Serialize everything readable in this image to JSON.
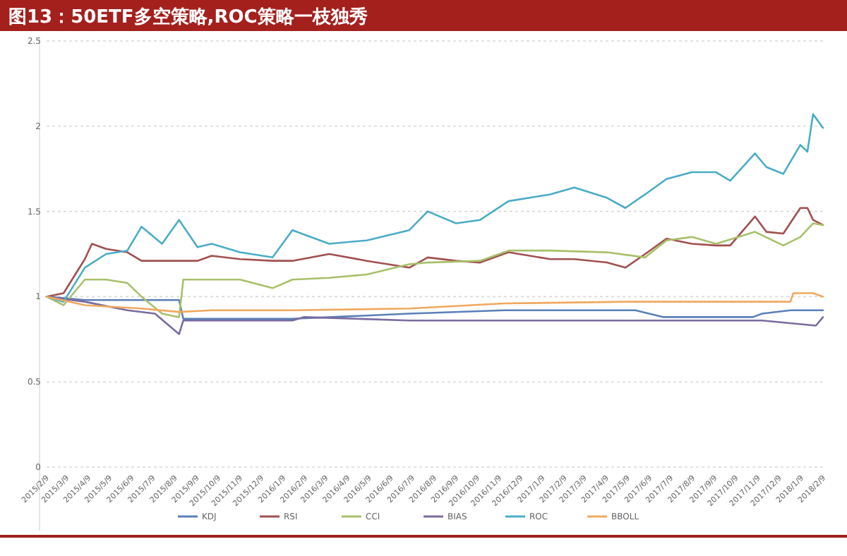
{
  "chart_data": {
    "type": "line",
    "title": "图13：50ETF多空策略,ROC策略一枝独秀",
    "ylim": [
      0,
      2.5
    ],
    "yticks": [
      0,
      0.5,
      1,
      1.5,
      2,
      2.5
    ],
    "grid": "y",
    "legend": "bottom",
    "xlim": [
      "2015-02-09",
      "2018-02-09"
    ],
    "xticks": [
      {
        "value": "2015-02-09",
        "label": "2015/2/9"
      },
      {
        "value": "2015-03-09",
        "label": "2015/3/9"
      },
      {
        "value": "2015-04-09",
        "label": "2015/4/9"
      },
      {
        "value": "2015-05-09",
        "label": "2015/5/9"
      },
      {
        "value": "2015-06-09",
        "label": "2015/6/9"
      },
      {
        "value": "2015-07-09",
        "label": "2015/7/9"
      },
      {
        "value": "2015-08-09",
        "label": "2015/8/9"
      },
      {
        "value": "2015-09-09",
        "label": "2015/9/9"
      },
      {
        "value": "2015-10-09",
        "label": "2015/10/9"
      },
      {
        "value": "2015-11-09",
        "label": "2015/11/9"
      },
      {
        "value": "2015-12-09",
        "label": "2015/12/9"
      },
      {
        "value": "2016-01-09",
        "label": "2016/1/9"
      },
      {
        "value": "2016-02-09",
        "label": "2016/2/9"
      },
      {
        "value": "2016-03-09",
        "label": "2016/3/9"
      },
      {
        "value": "2016-04-09",
        "label": "2016/4/9"
      },
      {
        "value": "2016-05-09",
        "label": "2016/5/9"
      },
      {
        "value": "2016-06-09",
        "label": "2016/6/9"
      },
      {
        "value": "2016-07-09",
        "label": "2016/7/9"
      },
      {
        "value": "2016-08-09",
        "label": "2016/8/9"
      },
      {
        "value": "2016-09-09",
        "label": "2016/9/9"
      },
      {
        "value": "2016-10-09",
        "label": "2016/10/9"
      },
      {
        "value": "2016-11-09",
        "label": "2016/11/9"
      },
      {
        "value": "2016-12-09",
        "label": "2016/12/9"
      },
      {
        "value": "2017-01-09",
        "label": "2017/1/9"
      },
      {
        "value": "2017-02-09",
        "label": "2017/2/9"
      },
      {
        "value": "2017-03-09",
        "label": "2017/3/9"
      },
      {
        "value": "2017-04-09",
        "label": "2017/4/9"
      },
      {
        "value": "2017-05-09",
        "label": "2017/5/9"
      },
      {
        "value": "2017-06-09",
        "label": "2017/6/9"
      },
      {
        "value": "2017-07-09",
        "label": "2017/7/9"
      },
      {
        "value": "2017-08-09",
        "label": "2017/8/9"
      },
      {
        "value": "2017-09-09",
        "label": "2017/9/9"
      },
      {
        "value": "2017-10-09",
        "label": "2017/10/9"
      },
      {
        "value": "2017-11-09",
        "label": "2017/11/9"
      },
      {
        "value": "2017-12-09",
        "label": "2017/12/9"
      },
      {
        "value": "2018-01-09",
        "label": "2018/1/9"
      },
      {
        "value": "2018-02-09",
        "label": "2018/2/9"
      }
    ],
    "series": [
      {
        "name": "KDJ",
        "color": "#5b7fb8",
        "x": [
          "2015-02-09",
          "2015-04-04",
          "2015-08-15",
          "2015-08-21",
          "2016-01-22",
          "2016-07-05",
          "2016-11-16",
          "2017-05-20",
          "2017-06-29",
          "2017-11-02",
          "2017-11-15",
          "2017-12-25",
          "2018-02-09"
        ],
        "values": [
          1.0,
          0.98,
          0.98,
          0.87,
          0.87,
          0.9,
          0.92,
          0.92,
          0.88,
          0.88,
          0.9,
          0.92,
          0.92
        ]
      },
      {
        "name": "RSI",
        "color": "#a0504f",
        "x": [
          "2015-02-09",
          "2015-03-05",
          "2015-04-04",
          "2015-04-14",
          "2015-05-04",
          "2015-06-03",
          "2015-06-23",
          "2015-07-22",
          "2015-08-15",
          "2015-09-10",
          "2015-09-30",
          "2015-11-09",
          "2015-12-25",
          "2016-01-22",
          "2016-03-14",
          "2016-05-06",
          "2016-07-05",
          "2016-07-31",
          "2016-09-09",
          "2016-10-13",
          "2016-11-22",
          "2017-01-20",
          "2017-02-23",
          "2017-04-10",
          "2017-05-06",
          "2017-06-03",
          "2017-07-03",
          "2017-08-08",
          "2017-09-11",
          "2017-10-01",
          "2017-11-05",
          "2017-11-21",
          "2017-12-15",
          "2018-01-08",
          "2018-01-18",
          "2018-01-26",
          "2018-02-09"
        ],
        "values": [
          1.0,
          1.02,
          1.22,
          1.31,
          1.28,
          1.26,
          1.21,
          1.21,
          1.21,
          1.21,
          1.24,
          1.22,
          1.21,
          1.21,
          1.25,
          1.21,
          1.17,
          1.23,
          1.21,
          1.2,
          1.26,
          1.22,
          1.22,
          1.2,
          1.17,
          1.25,
          1.34,
          1.31,
          1.3,
          1.3,
          1.47,
          1.38,
          1.37,
          1.52,
          1.52,
          1.45,
          1.42
        ]
      },
      {
        "name": "CCI",
        "color": "#a8c06a",
        "x": [
          "2015-02-09",
          "2015-03-05",
          "2015-04-04",
          "2015-05-04",
          "2015-06-03",
          "2015-06-23",
          "2015-07-22",
          "2015-08-15",
          "2015-08-21",
          "2015-09-10",
          "2015-09-30",
          "2015-11-09",
          "2015-12-25",
          "2016-01-22",
          "2016-03-14",
          "2016-05-06",
          "2016-07-05",
          "2016-07-31",
          "2016-10-13",
          "2016-11-22",
          "2017-01-20",
          "2017-04-10",
          "2017-06-03",
          "2017-07-03",
          "2017-08-08",
          "2017-09-11",
          "2017-11-05",
          "2017-12-15",
          "2018-01-08",
          "2018-01-26",
          "2018-02-09"
        ],
        "values": [
          1.0,
          0.95,
          1.1,
          1.1,
          1.08,
          1.0,
          0.9,
          0.88,
          1.1,
          1.1,
          1.1,
          1.1,
          1.05,
          1.1,
          1.11,
          1.13,
          1.19,
          1.2,
          1.21,
          1.27,
          1.27,
          1.26,
          1.23,
          1.33,
          1.35,
          1.31,
          1.38,
          1.3,
          1.35,
          1.43,
          1.42
        ]
      },
      {
        "name": "BIAS",
        "color": "#7a6ba0",
        "x": [
          "2015-02-09",
          "2015-04-04",
          "2015-06-03",
          "2015-07-12",
          "2015-08-15",
          "2015-08-21",
          "2016-01-22",
          "2016-02-07",
          "2016-07-05",
          "2017-11-15",
          "2018-01-30",
          "2018-02-09"
        ],
        "values": [
          1.0,
          0.97,
          0.92,
          0.9,
          0.78,
          0.86,
          0.86,
          0.88,
          0.86,
          0.86,
          0.83,
          0.88
        ]
      },
      {
        "name": "ROC",
        "color": "#4bacc6",
        "x": [
          "2015-02-09",
          "2015-03-05",
          "2015-04-04",
          "2015-05-04",
          "2015-06-03",
          "2015-06-23",
          "2015-07-22",
          "2015-08-15",
          "2015-09-10",
          "2015-09-30",
          "2015-11-09",
          "2015-12-25",
          "2016-01-22",
          "2016-03-14",
          "2016-05-06",
          "2016-07-05",
          "2016-07-31",
          "2016-09-09",
          "2016-10-13",
          "2016-11-22",
          "2017-01-20",
          "2017-02-23",
          "2017-04-10",
          "2017-05-06",
          "2017-06-03",
          "2017-07-03",
          "2017-08-08",
          "2017-09-11",
          "2017-10-01",
          "2017-11-05",
          "2017-11-21",
          "2017-12-15",
          "2018-01-08",
          "2018-01-18",
          "2018-01-26",
          "2018-02-09"
        ],
        "values": [
          1.0,
          0.97,
          1.17,
          1.25,
          1.27,
          1.41,
          1.31,
          1.45,
          1.29,
          1.31,
          1.26,
          1.23,
          1.39,
          1.31,
          1.33,
          1.39,
          1.5,
          1.43,
          1.45,
          1.56,
          1.6,
          1.64,
          1.58,
          1.52,
          1.6,
          1.69,
          1.73,
          1.73,
          1.68,
          1.84,
          1.76,
          1.72,
          1.89,
          1.85,
          2.07,
          1.99
        ]
      },
      {
        "name": "BBOLL",
        "color": "#f0a860",
        "x": [
          "2015-02-09",
          "2015-04-04",
          "2015-06-23",
          "2015-08-15",
          "2015-09-30",
          "2016-01-22",
          "2016-07-05",
          "2016-11-16",
          "2017-05-10",
          "2017-12-25",
          "2017-12-29",
          "2018-01-26",
          "2018-02-09"
        ],
        "values": [
          1.0,
          0.95,
          0.93,
          0.91,
          0.92,
          0.92,
          0.93,
          0.96,
          0.97,
          0.97,
          1.02,
          1.02,
          1.0
        ]
      }
    ]
  }
}
